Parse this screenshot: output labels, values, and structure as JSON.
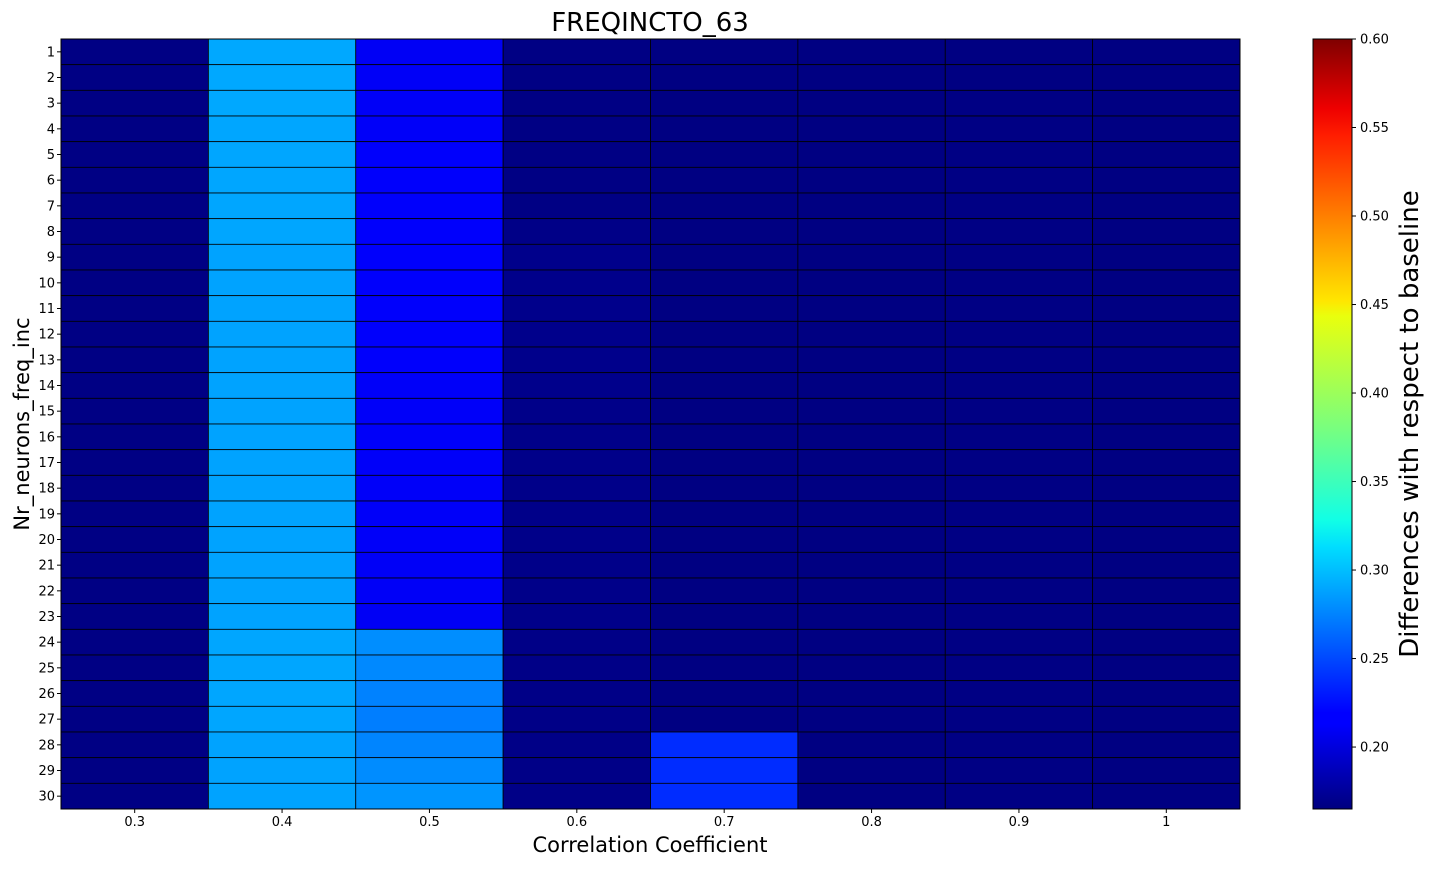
{
  "chart_data": {
    "type": "heatmap",
    "title": "FREQINCTO_63",
    "xlabel": "Correlation Coefficient",
    "ylabel": "Nr_neurons_freq_inc",
    "x_categories": [
      "0.3",
      "0.4",
      "0.5",
      "0.6",
      "0.7",
      "0.8",
      "0.9",
      "1"
    ],
    "y_categories": [
      "1",
      "2",
      "3",
      "4",
      "5",
      "6",
      "7",
      "8",
      "9",
      "10",
      "11",
      "12",
      "13",
      "14",
      "15",
      "16",
      "17",
      "18",
      "19",
      "20",
      "21",
      "22",
      "23",
      "24",
      "25",
      "26",
      "27",
      "28",
      "29",
      "30"
    ],
    "values": [
      [
        0.167,
        0.291,
        0.215,
        0.167,
        0.166,
        0.166,
        0.166,
        0.166
      ],
      [
        0.167,
        0.291,
        0.216,
        0.167,
        0.166,
        0.166,
        0.166,
        0.166
      ],
      [
        0.167,
        0.291,
        0.216,
        0.167,
        0.166,
        0.166,
        0.167,
        0.166
      ],
      [
        0.167,
        0.29,
        0.217,
        0.167,
        0.166,
        0.166,
        0.167,
        0.166
      ],
      [
        0.167,
        0.29,
        0.218,
        0.167,
        0.166,
        0.166,
        0.167,
        0.166
      ],
      [
        0.167,
        0.29,
        0.218,
        0.167,
        0.166,
        0.166,
        0.167,
        0.166
      ],
      [
        0.167,
        0.29,
        0.218,
        0.167,
        0.166,
        0.166,
        0.167,
        0.166
      ],
      [
        0.167,
        0.29,
        0.218,
        0.168,
        0.166,
        0.166,
        0.167,
        0.166
      ],
      [
        0.167,
        0.289,
        0.218,
        0.17,
        0.166,
        0.166,
        0.167,
        0.166
      ],
      [
        0.167,
        0.289,
        0.218,
        0.17,
        0.166,
        0.166,
        0.167,
        0.166
      ],
      [
        0.167,
        0.289,
        0.218,
        0.17,
        0.166,
        0.166,
        0.167,
        0.166
      ],
      [
        0.167,
        0.289,
        0.218,
        0.17,
        0.166,
        0.166,
        0.167,
        0.166
      ],
      [
        0.167,
        0.289,
        0.218,
        0.17,
        0.166,
        0.166,
        0.167,
        0.166
      ],
      [
        0.167,
        0.289,
        0.217,
        0.17,
        0.166,
        0.166,
        0.167,
        0.166
      ],
      [
        0.167,
        0.289,
        0.217,
        0.169,
        0.166,
        0.166,
        0.167,
        0.166
      ],
      [
        0.167,
        0.289,
        0.217,
        0.169,
        0.166,
        0.166,
        0.167,
        0.166
      ],
      [
        0.167,
        0.289,
        0.217,
        0.169,
        0.166,
        0.166,
        0.167,
        0.166
      ],
      [
        0.167,
        0.289,
        0.217,
        0.169,
        0.166,
        0.166,
        0.167,
        0.166
      ],
      [
        0.167,
        0.289,
        0.217,
        0.169,
        0.166,
        0.166,
        0.167,
        0.166
      ],
      [
        0.167,
        0.289,
        0.217,
        0.169,
        0.166,
        0.166,
        0.167,
        0.166
      ],
      [
        0.167,
        0.289,
        0.216,
        0.169,
        0.166,
        0.166,
        0.167,
        0.166
      ],
      [
        0.167,
        0.289,
        0.216,
        0.169,
        0.166,
        0.166,
        0.167,
        0.166
      ],
      [
        0.167,
        0.289,
        0.215,
        0.169,
        0.166,
        0.166,
        0.167,
        0.166
      ],
      [
        0.167,
        0.29,
        0.28,
        0.168,
        0.166,
        0.166,
        0.167,
        0.166
      ],
      [
        0.167,
        0.29,
        0.278,
        0.168,
        0.166,
        0.166,
        0.167,
        0.166
      ],
      [
        0.167,
        0.29,
        0.275,
        0.168,
        0.166,
        0.166,
        0.167,
        0.166
      ],
      [
        0.167,
        0.29,
        0.273,
        0.168,
        0.166,
        0.166,
        0.167,
        0.166
      ],
      [
        0.167,
        0.289,
        0.276,
        0.168,
        0.238,
        0.166,
        0.167,
        0.166
      ],
      [
        0.167,
        0.289,
        0.279,
        0.168,
        0.238,
        0.166,
        0.167,
        0.166
      ],
      [
        0.167,
        0.289,
        0.283,
        0.168,
        0.238,
        0.166,
        0.167,
        0.166
      ]
    ],
    "colorbar": {
      "label": "Differences with respect to baseline",
      "colormap": "jet",
      "vmin": 0.165,
      "vmax": 0.6,
      "ticks": [
        "0.20",
        "0.25",
        "0.30",
        "0.35",
        "0.40",
        "0.45",
        "0.50",
        "0.55",
        "0.60"
      ]
    },
    "cell_edge_color": "#000000",
    "grid": true
  }
}
